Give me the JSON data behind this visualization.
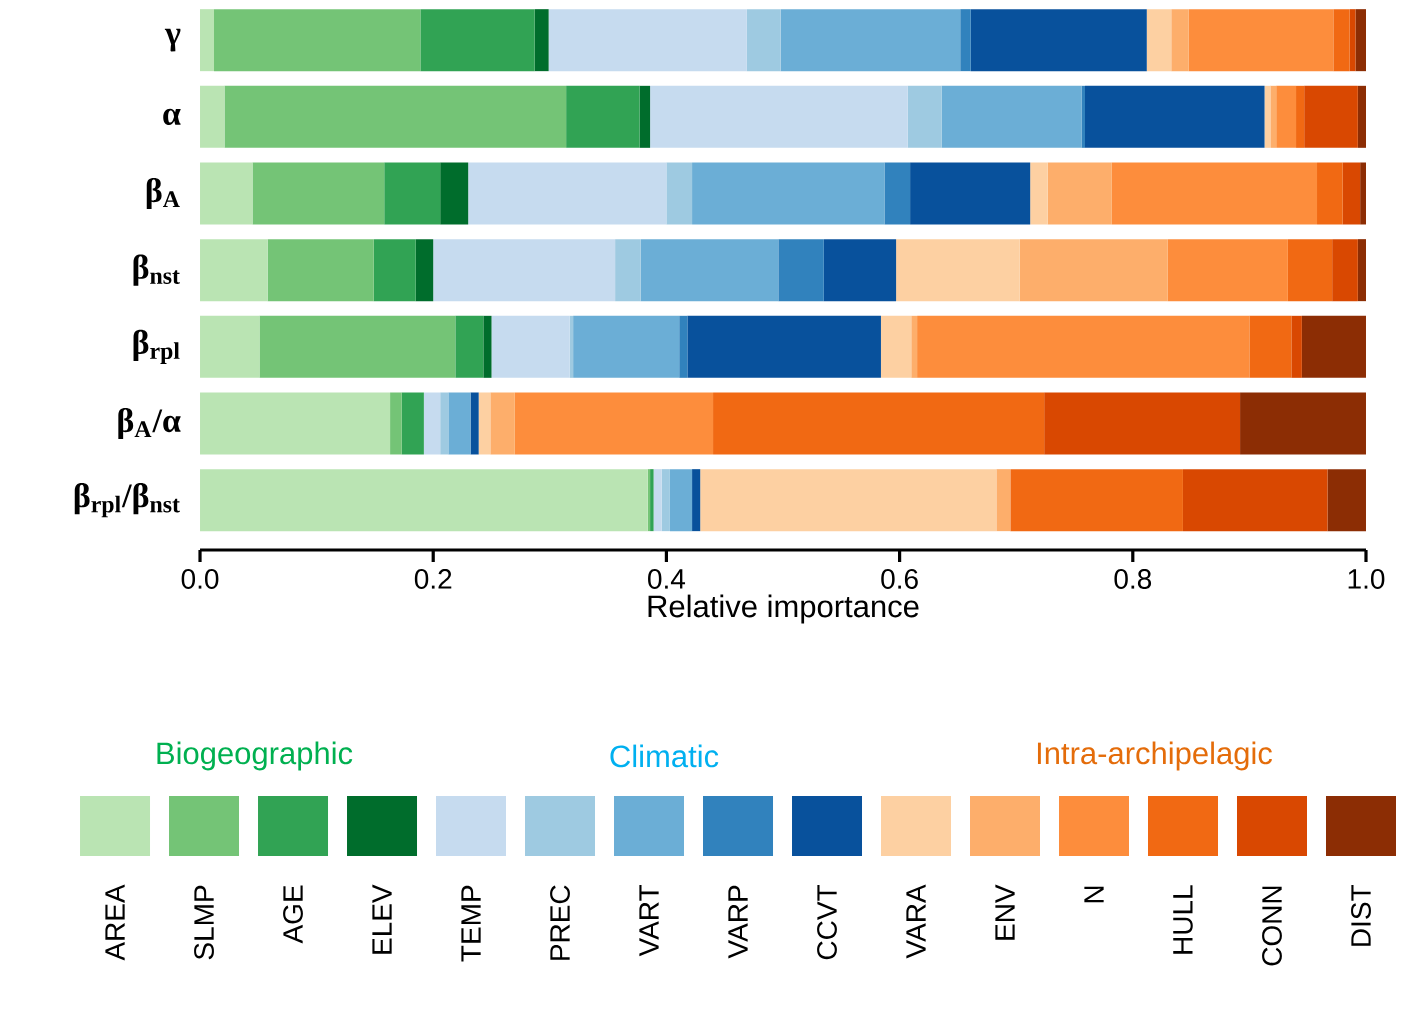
{
  "chart_data": {
    "type": "bar",
    "orientation": "horizontal",
    "stacked": true,
    "categories": [
      "γ",
      "α",
      "β$_{A}$",
      "β$_{nst}$",
      "β$_{rpl}$",
      "β$_{A}$/α",
      "β$_{rpl}$/β$_{nst}$"
    ],
    "series": [
      {
        "name": "AREA",
        "color": "#bae4b3",
        "values": [
          0.012,
          0.021,
          0.045,
          0.058,
          0.051,
          0.163,
          0.384
        ]
      },
      {
        "name": "SLMP",
        "color": "#74c476",
        "values": [
          0.177,
          0.293,
          0.113,
          0.091,
          0.168,
          0.01,
          0.002
        ]
      },
      {
        "name": "AGE",
        "color": "#31a354",
        "values": [
          0.098,
          0.063,
          0.048,
          0.036,
          0.024,
          0.019,
          0.003
        ]
      },
      {
        "name": "ELEV",
        "color": "#006d2c",
        "values": [
          0.012,
          0.009,
          0.024,
          0.015,
          0.007,
          0,
          0
        ]
      },
      {
        "name": "TEMP",
        "color": "#c6dbef",
        "values": [
          0.17,
          0.221,
          0.17,
          0.156,
          0.067,
          0.014,
          0.007
        ]
      },
      {
        "name": "PREC",
        "color": "#9ecae1",
        "values": [
          0.029,
          0.029,
          0.022,
          0.022,
          0.003,
          0.007,
          0.007
        ]
      },
      {
        "name": "VART",
        "color": "#6baed6",
        "values": [
          0.154,
          0.12,
          0.165,
          0.118,
          0.091,
          0.019,
          0.019
        ]
      },
      {
        "name": "VARP",
        "color": "#3182bd",
        "values": [
          0.009,
          0.003,
          0.022,
          0.039,
          0.007,
          0,
          0
        ]
      },
      {
        "name": "CCVT",
        "color": "#08519c",
        "values": [
          0.151,
          0.154,
          0.103,
          0.062,
          0.166,
          0.007,
          0.007
        ]
      },
      {
        "name": "VARA",
        "color": "#fdd0a2",
        "values": [
          0.021,
          0.005,
          0.015,
          0.106,
          0.026,
          0.01,
          0.254
        ]
      },
      {
        "name": "ENV",
        "color": "#fdae6b",
        "values": [
          0.015,
          0.005,
          0.055,
          0.127,
          0.005,
          0.021,
          0.012
        ]
      },
      {
        "name": "N",
        "color": "#fd8d3c",
        "values": [
          0.124,
          0.017,
          0.176,
          0.103,
          0.285,
          0.17,
          0
        ]
      },
      {
        "name": "HULL",
        "color": "#f16913",
        "values": [
          0.014,
          0.007,
          0.022,
          0.038,
          0.036,
          0.284,
          0.148
        ]
      },
      {
        "name": "CONN",
        "color": "#d94801",
        "values": [
          0.005,
          0.046,
          0.015,
          0.022,
          0.009,
          0.168,
          0.124
        ]
      },
      {
        "name": "DIST",
        "color": "#8c2d04",
        "values": [
          0.009,
          0.007,
          0.005,
          0.007,
          0.055,
          0.108,
          0.033
        ]
      }
    ],
    "xlim": [
      0,
      1
    ],
    "xticks": [
      {
        "value": 0,
        "label": "0.0"
      },
      {
        "value": 0.2,
        "label": "0.2"
      },
      {
        "value": 0.4,
        "label": "0.4"
      },
      {
        "value": 0.6,
        "label": "0.6"
      },
      {
        "value": 0.8,
        "label": "0.8"
      },
      {
        "value": 1,
        "label": "1.0"
      }
    ],
    "xlabel": "Relative importance",
    "legend": "bottom",
    "annotations": [
      "Biogeographic",
      "Climatic",
      "Intra-archipelagic"
    ]
  }
}
